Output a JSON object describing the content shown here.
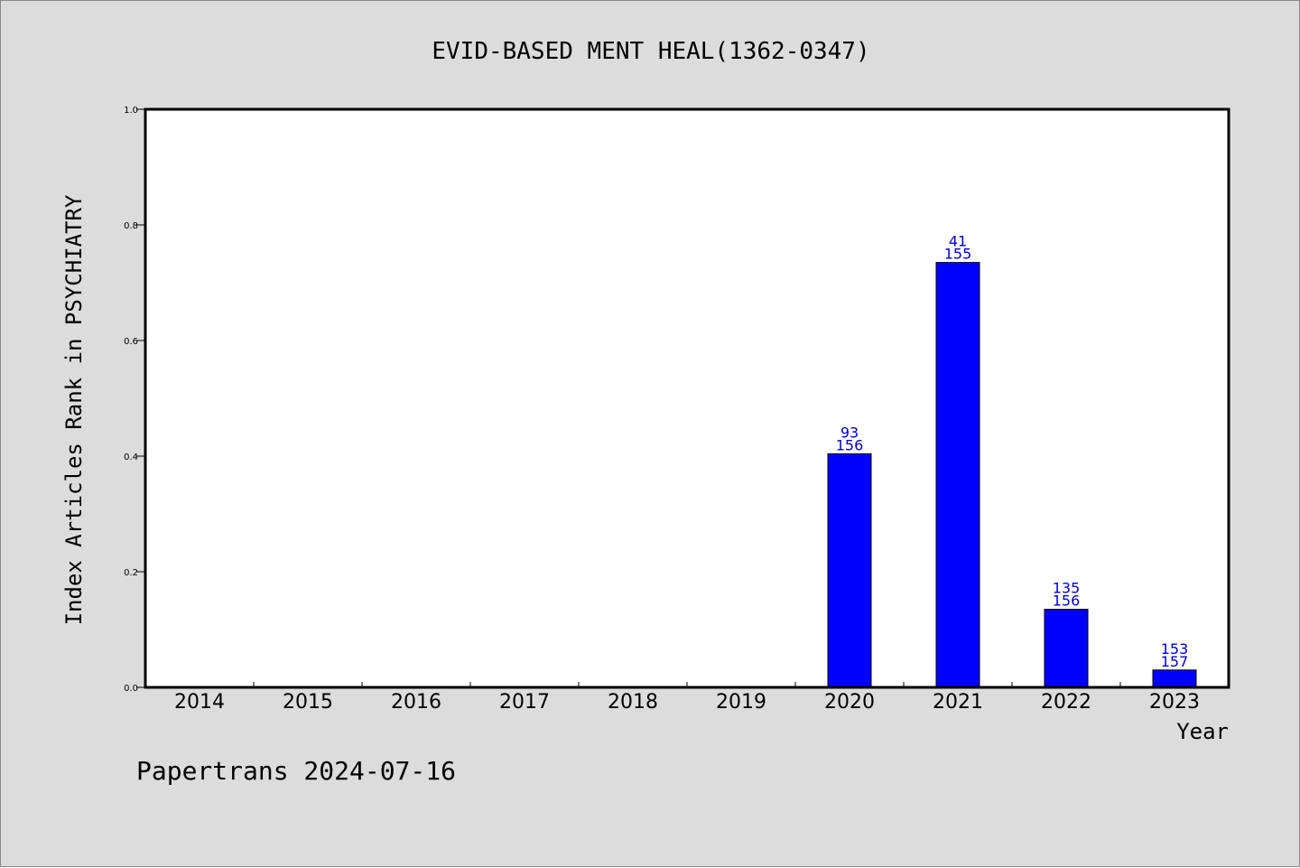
{
  "colors": {
    "background": "#dcdcdc",
    "plot_background": "#ffffff",
    "bar": "#0000ff",
    "bar_label": "#0000cc",
    "axis": "#000000"
  },
  "footer": "Papertrans 2024-07-16",
  "chart_data": {
    "type": "bar",
    "title": "EVID-BASED MENT HEAL(1362-0347)",
    "xlabel": "Year",
    "ylabel": "Index Articles Rank in PSYCHIATRY",
    "ylim": [
      0,
      1.0
    ],
    "yticks": [
      "0.0",
      "0.2",
      "0.4",
      "0.6",
      "0.8",
      "1.0"
    ],
    "categories": [
      "2014",
      "2015",
      "2016",
      "2017",
      "2018",
      "2019",
      "2020",
      "2021",
      "2022",
      "2023"
    ],
    "values": [
      null,
      null,
      null,
      null,
      null,
      null,
      0.404,
      0.735,
      0.135,
      0.03
    ],
    "bar_labels": [
      null,
      null,
      null,
      null,
      null,
      null,
      [
        "93",
        "156"
      ],
      [
        "41",
        "155"
      ],
      [
        "135",
        "156"
      ],
      [
        "153",
        "157"
      ]
    ],
    "grid": false,
    "legend": "none"
  }
}
